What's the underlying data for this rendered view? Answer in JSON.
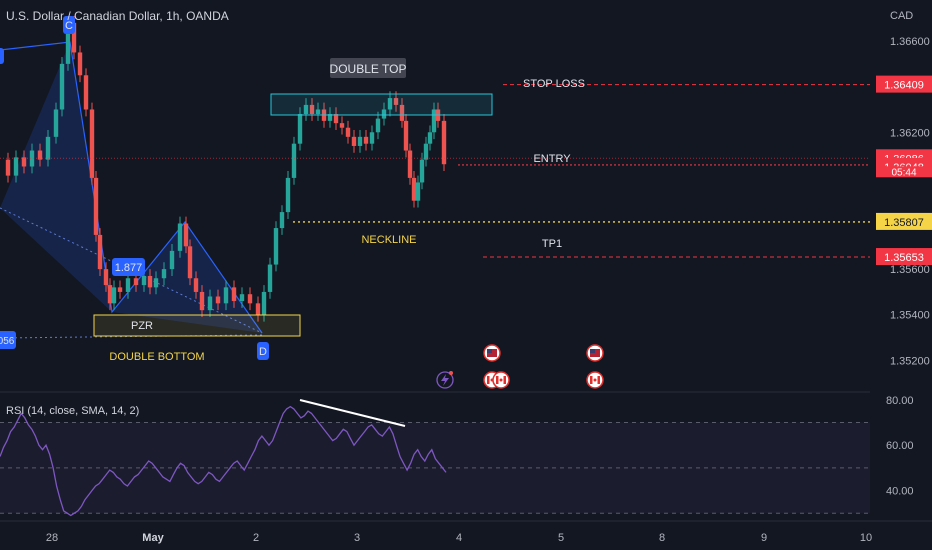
{
  "header": {
    "symbol_title": "U.S. Dollar / Canadian Dollar, 1h, OANDA",
    "currency": "CAD"
  },
  "colors": {
    "background": "#131722",
    "up": "#26a69a",
    "down": "#ef5350",
    "pattern_fill": "#2962ff",
    "yellow": "#f5d547",
    "teal_box": "#26c6da",
    "red_line": "#f23645",
    "rsi_line": "#7e57c2",
    "white": "#ffffff"
  },
  "chart_data": {
    "type": "candlestick",
    "title": "U.S. Dollar / Canadian Dollar, 1h, OANDA",
    "y_axis": {
      "unit": "CAD",
      "ticks": [
        1.366,
        1.362,
        1.356,
        1.354,
        1.352
      ],
      "tick_labels": [
        "1.36600",
        "1.36200",
        "1.35600",
        "1.35400",
        "1.35200"
      ],
      "range": [
        1.3507,
        1.3678
      ]
    },
    "x_axis": {
      "tick_labels": [
        "28",
        "May",
        "2",
        "3",
        "4",
        "5",
        "8",
        "9",
        "10"
      ]
    },
    "price_labels": [
      {
        "value": 1.36409,
        "text": "1.36409",
        "style": "red"
      },
      {
        "value": 1.36086,
        "text": "1.36086",
        "style": "red"
      },
      {
        "value": 1.36048,
        "text": "1.36048",
        "style": "red"
      },
      {
        "value": 1.35807,
        "text": "1.35807",
        "style": "yellow"
      },
      {
        "value": 1.35653,
        "text": "1.35653",
        "style": "red"
      }
    ],
    "countdown": "05:44",
    "levels": [
      {
        "name": "STOP LOSS",
        "value": 1.36409
      },
      {
        "name": "ENTRY",
        "value": 1.36048
      },
      {
        "name": "NECKLINE",
        "value": 1.35807
      },
      {
        "name": "TP1",
        "value": 1.35653
      }
    ],
    "annotations": {
      "double_top": "DOUBLE TOP",
      "stop_loss": "STOP LOSS",
      "entry": "ENTRY",
      "neckline": "NECKLINE",
      "tp1": "TP1",
      "pzr": "PZR",
      "double_bottom": "DOUBLE BOTTOM",
      "point_c": "C",
      "point_d": "D",
      "ratio_label": "1.877",
      "left_label": "056"
    },
    "rsi": {
      "title": "RSI (14, close, SMA, 14, 2)",
      "ticks": [
        80,
        60,
        40
      ],
      "tick_labels": [
        "80.00",
        "60.00",
        "40.00"
      ],
      "range": [
        27,
        83
      ],
      "bands": [
        70,
        50,
        30
      ],
      "values": [
        55,
        59,
        62,
        66,
        68,
        71,
        74,
        72,
        69,
        67,
        64,
        60,
        58,
        60,
        56,
        50,
        42,
        36,
        31,
        30,
        29,
        30,
        31,
        33,
        36,
        38,
        40,
        42,
        43,
        45,
        47,
        49,
        48,
        46,
        45,
        43,
        42,
        44,
        46,
        47,
        49,
        51,
        53,
        52,
        50,
        48,
        46,
        45,
        44,
        47,
        50,
        52,
        51,
        48,
        46,
        44,
        43,
        44,
        46,
        48,
        47,
        45,
        44,
        46,
        48,
        50,
        52,
        53,
        51,
        49,
        52,
        55,
        58,
        62,
        64,
        62,
        60,
        62,
        66,
        70,
        74,
        76,
        77,
        76,
        74,
        72,
        73,
        75,
        74,
        72,
        70,
        68,
        66,
        64,
        62,
        63,
        65,
        67,
        66,
        63,
        60,
        62,
        64,
        66,
        68,
        69,
        67,
        65,
        64,
        66,
        68,
        65,
        60,
        55,
        52,
        49,
        52,
        56,
        58,
        55,
        53,
        56,
        58,
        54,
        52,
        50,
        48
      ]
    }
  }
}
